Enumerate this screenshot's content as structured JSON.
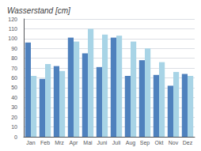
{
  "chart_data": {
    "type": "bar",
    "title": "Wasserstand [cm]",
    "categories": [
      "Jan",
      "Feb",
      "Mrz",
      "Apr",
      "Mai",
      "Juni",
      "Juli",
      "Aug",
      "Sep",
      "Okt",
      "Nov",
      "Dez"
    ],
    "series": [
      {
        "color": "#4f81bd",
        "values": [
          96,
          59,
          72,
          101,
          85,
          71,
          101,
          62,
          78,
          63,
          52,
          64
        ]
      },
      {
        "color": "#a8d4e6",
        "values": [
          62,
          74,
          67,
          97,
          110,
          104,
          103,
          97,
          90,
          76,
          66,
          62
        ]
      }
    ],
    "ylim": [
      0,
      120
    ],
    "yticks": [
      0,
      10,
      20,
      30,
      40,
      50,
      60,
      70,
      80,
      90,
      100,
      110,
      120
    ],
    "grid": true
  }
}
